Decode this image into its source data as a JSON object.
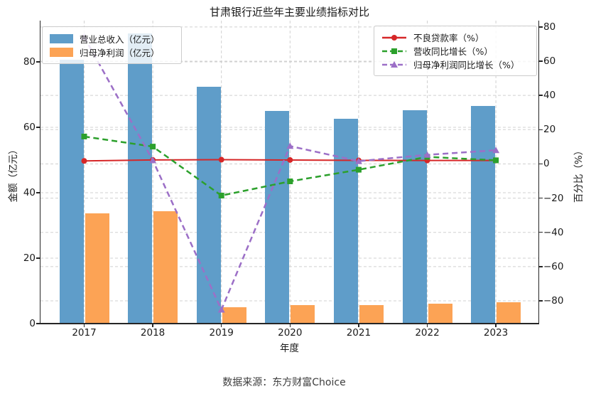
{
  "title": "甘肃银行近些年主要业绩指标对比",
  "footer": "数据来源：东方财富Choice",
  "axes": {
    "x_label": "年度",
    "y_left_label": "金额（亿元）",
    "y_right_label": "百分比（%）",
    "y_left_ticks": [
      0,
      20,
      40,
      60,
      80
    ],
    "y_right_ticks": [
      -80,
      -60,
      -40,
      -20,
      0,
      20,
      40,
      60,
      80
    ]
  },
  "colors": {
    "bar_revenue": "#5F9DC9",
    "bar_profit": "#FCA355",
    "line_npl": "#D62728",
    "line_revenue_growth": "#2CA02C",
    "line_profit_growth": "#9C6FC7",
    "grid": "#d0d0d0",
    "spine": "#262626"
  },
  "chart_data": {
    "type": "bar",
    "title": "甘肃银行近些年主要业绩指标对比",
    "xlabel": "年度",
    "ylabel_left": "金额（亿元）",
    "ylabel_right": "百分比（%）",
    "categories": [
      "2017",
      "2018",
      "2019",
      "2020",
      "2021",
      "2022",
      "2023"
    ],
    "bar_series": [
      {
        "name": "营业总收入（亿元）",
        "axis": "left",
        "color": "#5F9DC9",
        "values": [
          80.6,
          88.7,
          72.3,
          64.9,
          62.7,
          65.3,
          66.6
        ]
      },
      {
        "name": "归母净利润（亿元）",
        "axis": "left",
        "color": "#FCA355",
        "values": [
          33.6,
          34.4,
          5.1,
          5.6,
          5.7,
          6.0,
          6.5
        ]
      }
    ],
    "line_series": [
      {
        "name": "不良贷款率（%）",
        "axis": "right",
        "color": "#D62728",
        "style": "solid",
        "marker": "circle",
        "values": [
          1.74,
          2.29,
          2.45,
          2.28,
          2.04,
          2.0,
          2.0
        ]
      },
      {
        "name": "营收同比增长（%）",
        "axis": "right",
        "color": "#2CA02C",
        "style": "dashed",
        "marker": "square",
        "values": [
          16.0,
          10.1,
          -18.5,
          -10.2,
          -3.4,
          4.1,
          2.1
        ]
      },
      {
        "name": "归母净利润同比增长（%）",
        "axis": "right",
        "color": "#9C6FC7",
        "style": "dashed",
        "marker": "triangle",
        "values": [
          74.2,
          2.1,
          -85.2,
          10.4,
          1.6,
          5.3,
          8.0
        ]
      }
    ],
    "ylim_left": [
      0,
      92.6
    ],
    "ylim_right": [
      -93.3,
      83.7
    ],
    "grid": true,
    "legend_positions": [
      "upper left",
      "upper right"
    ]
  }
}
